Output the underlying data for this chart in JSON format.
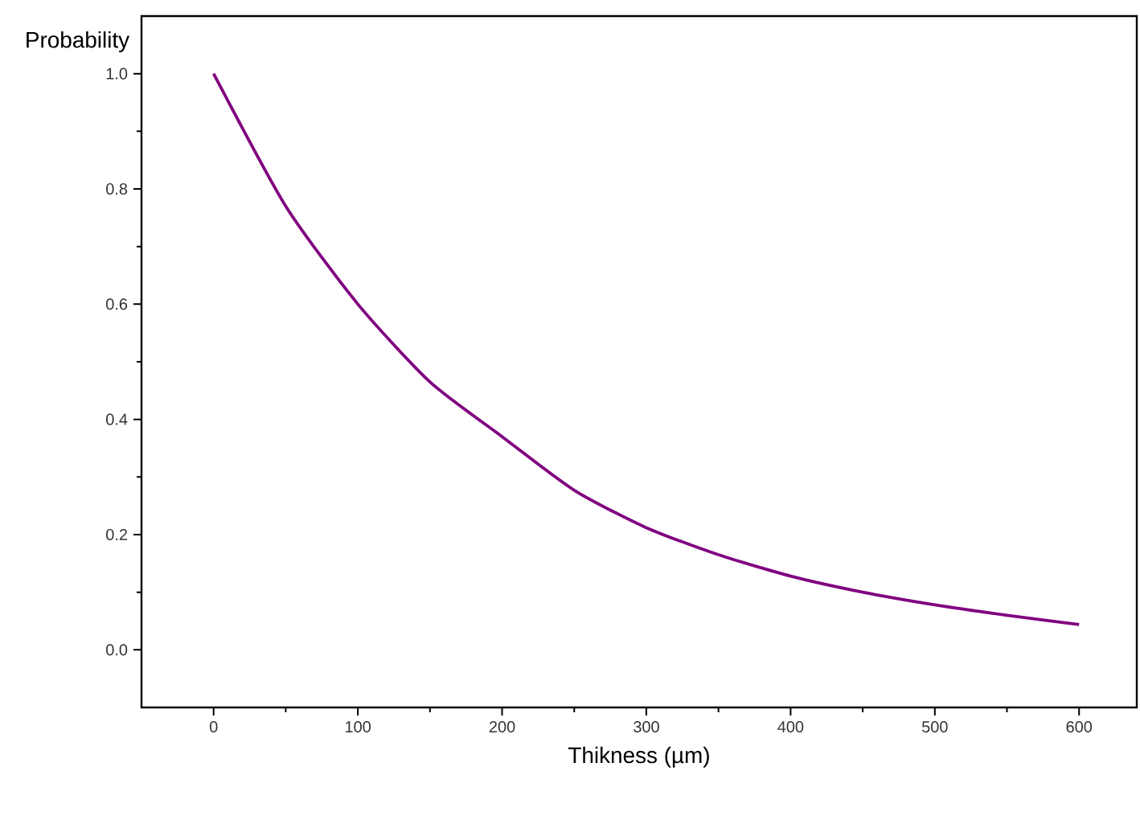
{
  "chart_data": {
    "type": "line",
    "xlabel": "Thikness (µm)",
    "ylabel": "Probability",
    "x": [
      0,
      50,
      100,
      150,
      200,
      250,
      300,
      350,
      400,
      450,
      500,
      550,
      600
    ],
    "series": [
      {
        "color": "#800080",
        "values": [
          1.0,
          0.77,
          0.6,
          0.465,
          0.37,
          0.277,
          0.212,
          0.165,
          0.128,
          0.1,
          0.078,
          0.06,
          0.044
        ]
      }
    ],
    "xlim": [
      -50,
      640
    ],
    "ylim": [
      -0.1,
      1.1
    ],
    "xticks": [
      0,
      100,
      200,
      300,
      400,
      500,
      600
    ],
    "yticks": [
      {
        "value": 0,
        "label": "0.0"
      },
      {
        "value": 0.2,
        "label": "0.2"
      },
      {
        "value": 0.4,
        "label": "0.4"
      },
      {
        "value": 0.6,
        "label": "0.6"
      },
      {
        "value": 0.8,
        "label": "0.8"
      },
      {
        "value": 1.0,
        "label": "1.0"
      }
    ],
    "marker": "none",
    "line_style": "solid"
  }
}
